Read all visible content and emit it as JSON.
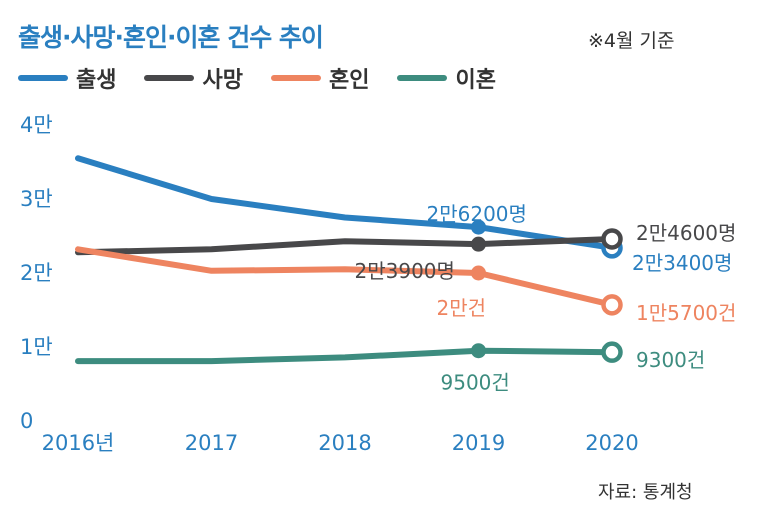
{
  "title": "출생·사망·혼인·이혼 건수 추이",
  "note": "※4월 기준",
  "source": "자료: 통계청",
  "legend": [
    {
      "label": "출생",
      "color": "#2a7fc0"
    },
    {
      "label": "사망",
      "color": "#48484a"
    },
    {
      "label": "혼인",
      "color": "#ee8460"
    },
    {
      "label": "이혼",
      "color": "#3d8c7f"
    }
  ],
  "chart_data": {
    "type": "line",
    "x": [
      "2016년",
      "2017",
      "2018",
      "2019",
      "2020"
    ],
    "ylim": [
      0,
      40000
    ],
    "yticks": [
      0,
      10000,
      20000,
      30000,
      40000
    ],
    "ytick_labels": [
      "0",
      "1만",
      "2만",
      "3만",
      "4만"
    ],
    "grid": false,
    "legend_position": "top-left",
    "series": [
      {
        "name": "출생",
        "color": "#2a7fc0",
        "values": [
          35500,
          30000,
          27500,
          26200,
          23400
        ]
      },
      {
        "name": "사망",
        "color": "#48484a",
        "values": [
          22800,
          23200,
          24300,
          23900,
          24600
        ]
      },
      {
        "name": "혼인",
        "color": "#ee8460",
        "values": [
          23200,
          20300,
          20500,
          20000,
          15700
        ]
      },
      {
        "name": "이혼",
        "color": "#3d8c7f",
        "values": [
          8100,
          8100,
          8600,
          9500,
          9300
        ]
      }
    ],
    "annotations": [
      {
        "series": 0,
        "index": 3,
        "text": "2만6200명",
        "color": "#2a7fc0",
        "dx": -52,
        "dy": -13
      },
      {
        "series": 0,
        "index": 4,
        "text": "2만3400명",
        "color": "#2a7fc0",
        "dx": 20,
        "dy": 15
      },
      {
        "series": 1,
        "index": 3,
        "text": "2만3900명",
        "color": "#48484a",
        "dx": -124,
        "dy": 27
      },
      {
        "series": 1,
        "index": 4,
        "text": "2만4600명",
        "color": "#48484a",
        "dx": 24,
        "dy": -6
      },
      {
        "series": 2,
        "index": 3,
        "text": "2만건",
        "color": "#ee8460",
        "dx": -42,
        "dy": 35
      },
      {
        "series": 2,
        "index": 4,
        "text": "1만5700건",
        "color": "#ee8460",
        "dx": 24,
        "dy": 8
      },
      {
        "series": 3,
        "index": 3,
        "text": "9500건",
        "color": "#3d8c7f",
        "dx": -38,
        "dy": 32
      },
      {
        "series": 3,
        "index": 4,
        "text": "9300건",
        "color": "#3d8c7f",
        "dx": 24,
        "dy": 8
      }
    ],
    "markers": [
      {
        "series": 0,
        "index": 3,
        "style": "filled"
      },
      {
        "series": 0,
        "index": 4,
        "style": "hollow"
      },
      {
        "series": 1,
        "index": 3,
        "style": "filled"
      },
      {
        "series": 1,
        "index": 4,
        "style": "hollow"
      },
      {
        "series": 2,
        "index": 3,
        "style": "filled"
      },
      {
        "series": 2,
        "index": 4,
        "style": "hollow"
      },
      {
        "series": 3,
        "index": 3,
        "style": "filled"
      },
      {
        "series": 3,
        "index": 4,
        "style": "hollow"
      }
    ]
  }
}
